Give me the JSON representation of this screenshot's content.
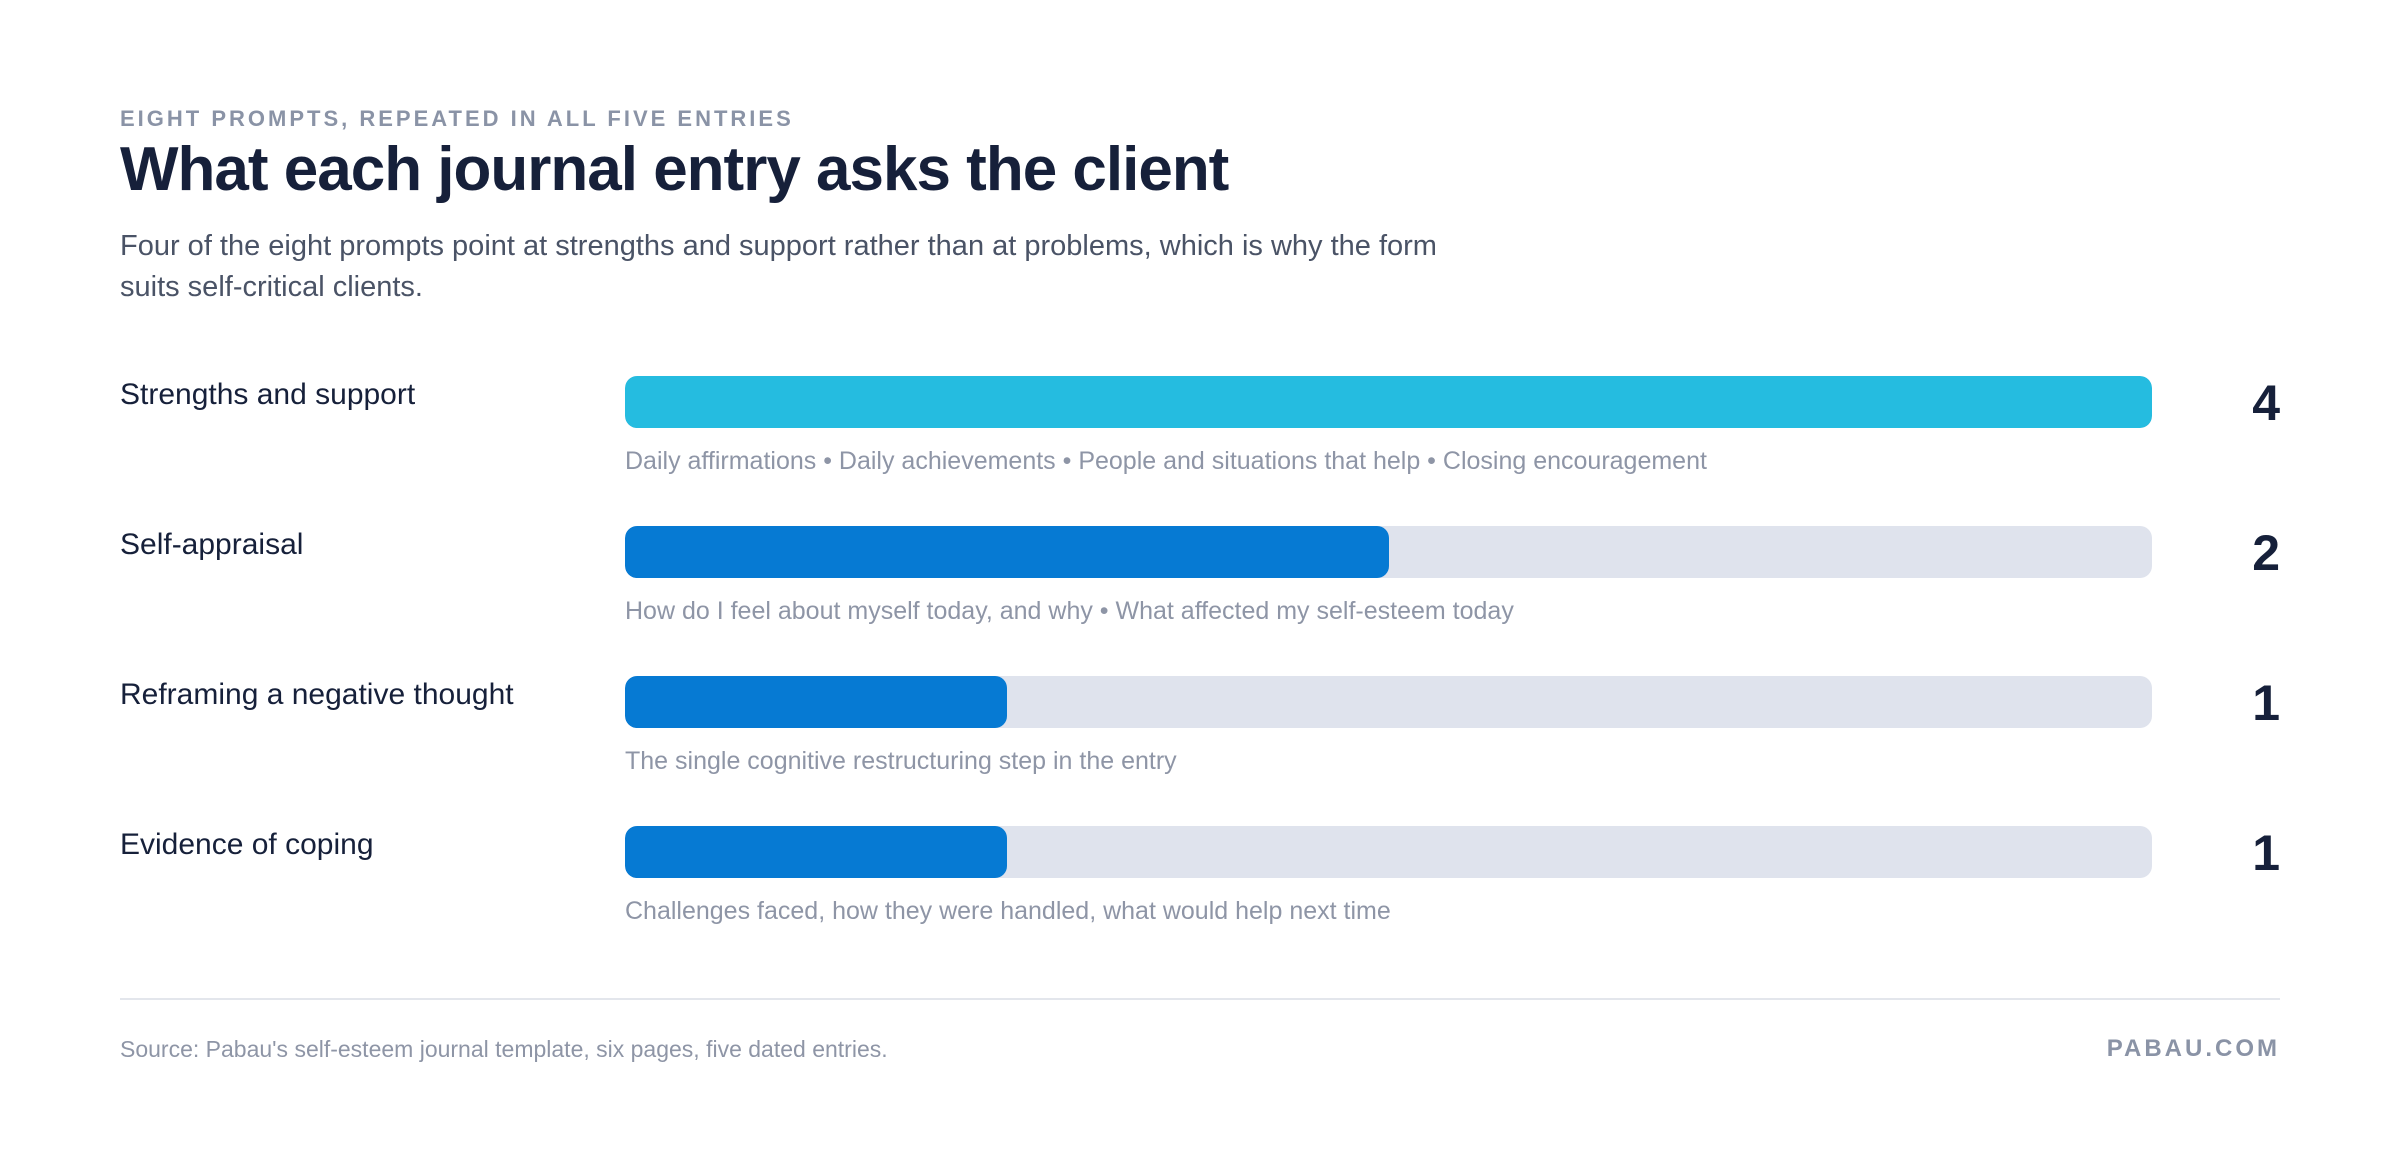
{
  "header": {
    "eyebrow": "EIGHT PROMPTS, REPEATED IN ALL FIVE ENTRIES",
    "title": "What each journal entry asks the client",
    "subtitle": "Four of the eight prompts point at strengths and support rather than at problems, which is why the form suits self-critical clients."
  },
  "chart_data": {
    "type": "bar",
    "orientation": "horizontal",
    "categories": [
      "Strengths and support",
      "Self-appraisal",
      "Reframing a negative thought",
      "Evidence of coping"
    ],
    "values": [
      4,
      2,
      1,
      1
    ],
    "notes": [
      "Daily affirmations • Daily achievements • People and situations that help • Closing encouragement",
      "How do I feel about myself today, and why • What affected my self-esteem today",
      "The single cognitive restructuring step in the entry",
      "Challenges faced, how they were handled, what would help next time"
    ],
    "xlim": [
      0,
      4
    ],
    "colors": [
      "#25bce0",
      "#067ad3",
      "#067ad3",
      "#067ad3"
    ],
    "track_color": "#dfe3ed"
  },
  "footer": {
    "source": "Source: Pabau's self-esteem journal template, six pages, five dated entries.",
    "brand": "PABAU.COM"
  }
}
